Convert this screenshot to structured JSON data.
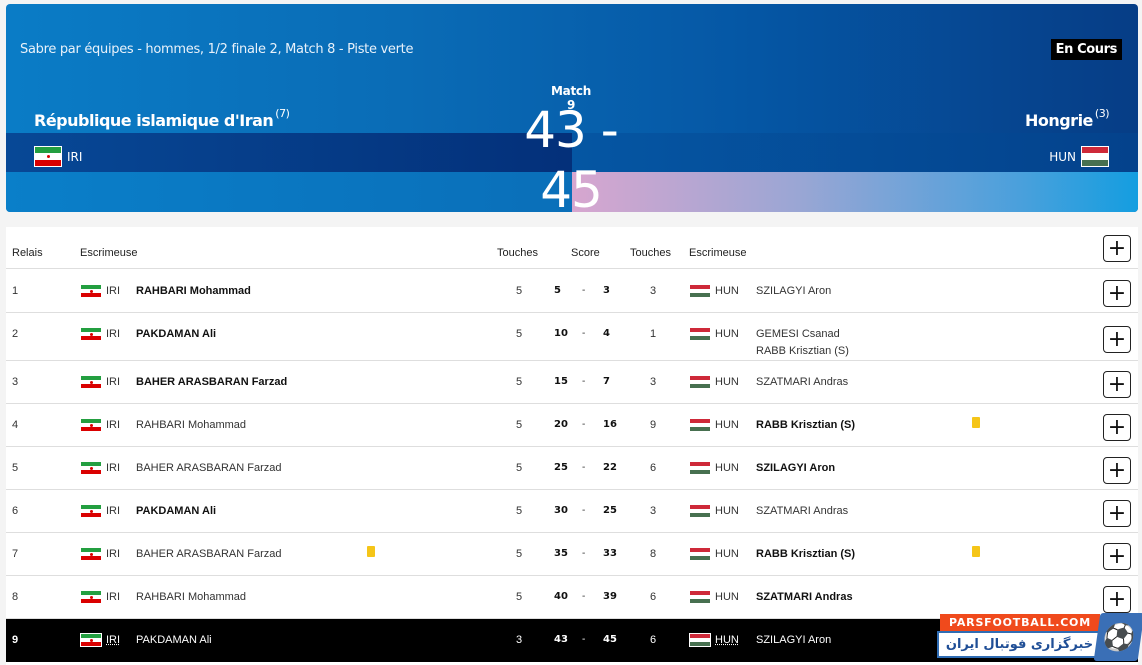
{
  "header": {
    "subtitle": "Sabre par équipes - hommes, 1/2 finale 2, Match 8 - Piste verte",
    "status": "En Cours",
    "match_label": "Match 9",
    "score": "43 - 45",
    "left_team": {
      "name": "République islamique d'Iran",
      "seed": "(7)",
      "code": "IRI",
      "flag": "iran-flag"
    },
    "right_team": {
      "name": "Hongrie",
      "seed": "(3)",
      "code": "HUN",
      "flag": "hungary-flag"
    },
    "colors": {
      "banner_start": "#0a7cc6",
      "banner_end": "#063d86",
      "left_band": "#053a85",
      "right_accent_pink": "#d7a6cf",
      "right_accent_blue": "#149ee0",
      "status_bg": "#000000"
    }
  },
  "table": {
    "columns": [
      "Relais",
      "Escrimeuse",
      "Touches",
      "Score",
      "Touches",
      "Escrimeuse"
    ],
    "expand_label": "+",
    "rows": [
      {
        "relais": "1",
        "left_code": "IRI",
        "left_name": "RAHBARI Mohammad",
        "left_bold": true,
        "left_touches": "5",
        "score_left": "5",
        "score_sep": "-",
        "score_right": "3",
        "right_touches": "3",
        "right_code": "HUN",
        "right_name": "SZILAGYI Aron",
        "right_name2": "",
        "right_bold": false,
        "left_card": false,
        "right_card": false
      },
      {
        "relais": "2",
        "left_code": "IRI",
        "left_name": "PAKDAMAN Ali",
        "left_bold": true,
        "left_touches": "5",
        "score_left": "10",
        "score_sep": "-",
        "score_right": "4",
        "right_touches": "1",
        "right_code": "HUN",
        "right_name": "GEMESI Csanad",
        "right_name2": "RABB Krisztian (S)",
        "right_bold": false,
        "left_card": false,
        "right_card": false
      },
      {
        "relais": "3",
        "left_code": "IRI",
        "left_name": "BAHER ARASBARAN Farzad",
        "left_bold": true,
        "left_touches": "5",
        "score_left": "15",
        "score_sep": "-",
        "score_right": "7",
        "right_touches": "3",
        "right_code": "HUN",
        "right_name": "SZATMARI Andras",
        "right_name2": "",
        "right_bold": false,
        "left_card": false,
        "right_card": false
      },
      {
        "relais": "4",
        "left_code": "IRI",
        "left_name": "RAHBARI Mohammad",
        "left_bold": false,
        "left_touches": "5",
        "score_left": "20",
        "score_sep": "-",
        "score_right": "16",
        "right_touches": "9",
        "right_code": "HUN",
        "right_name": "RABB Krisztian (S)",
        "right_name2": "",
        "right_bold": true,
        "left_card": false,
        "right_card": true
      },
      {
        "relais": "5",
        "left_code": "IRI",
        "left_name": "BAHER ARASBARAN Farzad",
        "left_bold": false,
        "left_touches": "5",
        "score_left": "25",
        "score_sep": "-",
        "score_right": "22",
        "right_touches": "6",
        "right_code": "HUN",
        "right_name": "SZILAGYI Aron",
        "right_name2": "",
        "right_bold": true,
        "left_card": false,
        "right_card": false
      },
      {
        "relais": "6",
        "left_code": "IRI",
        "left_name": "PAKDAMAN Ali",
        "left_bold": true,
        "left_touches": "5",
        "score_left": "30",
        "score_sep": "-",
        "score_right": "25",
        "right_touches": "3",
        "right_code": "HUN",
        "right_name": "SZATMARI Andras",
        "right_name2": "",
        "right_bold": false,
        "left_card": false,
        "right_card": false
      },
      {
        "relais": "7",
        "left_code": "IRI",
        "left_name": "BAHER ARASBARAN Farzad",
        "left_bold": false,
        "left_touches": "5",
        "score_left": "35",
        "score_sep": "-",
        "score_right": "33",
        "right_touches": "8",
        "right_code": "HUN",
        "right_name": "RABB Krisztian (S)",
        "right_name2": "",
        "right_bold": true,
        "left_card": true,
        "right_card": true
      },
      {
        "relais": "8",
        "left_code": "IRI",
        "left_name": "RAHBARI Mohammad",
        "left_bold": false,
        "left_touches": "5",
        "score_left": "40",
        "score_sep": "-",
        "score_right": "39",
        "right_touches": "6",
        "right_code": "HUN",
        "right_name": "SZATMARI Andras",
        "right_name2": "",
        "right_bold": true,
        "left_card": false,
        "right_card": false
      },
      {
        "relais": "9",
        "left_code": "IRI",
        "left_name": "PAKDAMAN Ali",
        "left_bold": false,
        "left_touches": "3",
        "score_left": "43",
        "score_sep": "-",
        "score_right": "45",
        "right_touches": "6",
        "right_code": "HUN",
        "right_name": "SZILAGYI Aron",
        "right_name2": "",
        "right_bold": false,
        "left_card": false,
        "right_card": false,
        "current": true
      }
    ],
    "card_color": "#f5c518"
  },
  "watermark": {
    "site": "PARSFOOTBALL.COM",
    "tagline": "خبرگزاری فوتبال ایران",
    "colors": {
      "orange": "#f04a1c",
      "blue": "#2f6cb3"
    }
  }
}
